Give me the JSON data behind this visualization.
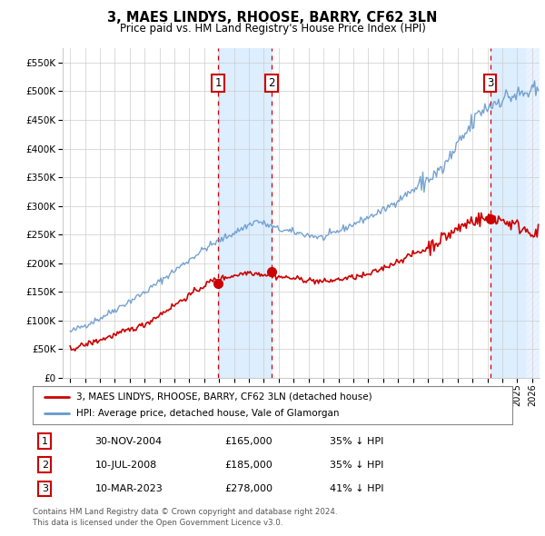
{
  "title": "3, MAES LINDYS, RHOOSE, BARRY, CF62 3LN",
  "subtitle": "Price paid vs. HM Land Registry's House Price Index (HPI)",
  "legend_label_red": "3, MAES LINDYS, RHOOSE, BARRY, CF62 3LN (detached house)",
  "legend_label_blue": "HPI: Average price, detached house, Vale of Glamorgan",
  "footer_line1": "Contains HM Land Registry data © Crown copyright and database right 2024.",
  "footer_line2": "This data is licensed under the Open Government Licence v3.0.",
  "transactions": [
    {
      "num": 1,
      "date": "30-NOV-2004",
      "price": 165000,
      "pct": "35%",
      "dir": "↓",
      "x_year": 2004.92
    },
    {
      "num": 2,
      "date": "10-JUL-2008",
      "price": 185000,
      "pct": "35%",
      "dir": "↓",
      "x_year": 2008.53
    },
    {
      "num": 3,
      "date": "10-MAR-2023",
      "price": 278000,
      "pct": "41%",
      "dir": "↓",
      "x_year": 2023.19
    }
  ],
  "ylim": [
    0,
    575000
  ],
  "xlim_start": 1994.5,
  "xlim_end": 2026.5,
  "hpi_color": "#6699cc",
  "price_color": "#cc0000",
  "shade_color": "#ddeeff",
  "vline_color": "#cc0000",
  "grid_color": "#cccccc",
  "background_color": "#ffffff"
}
